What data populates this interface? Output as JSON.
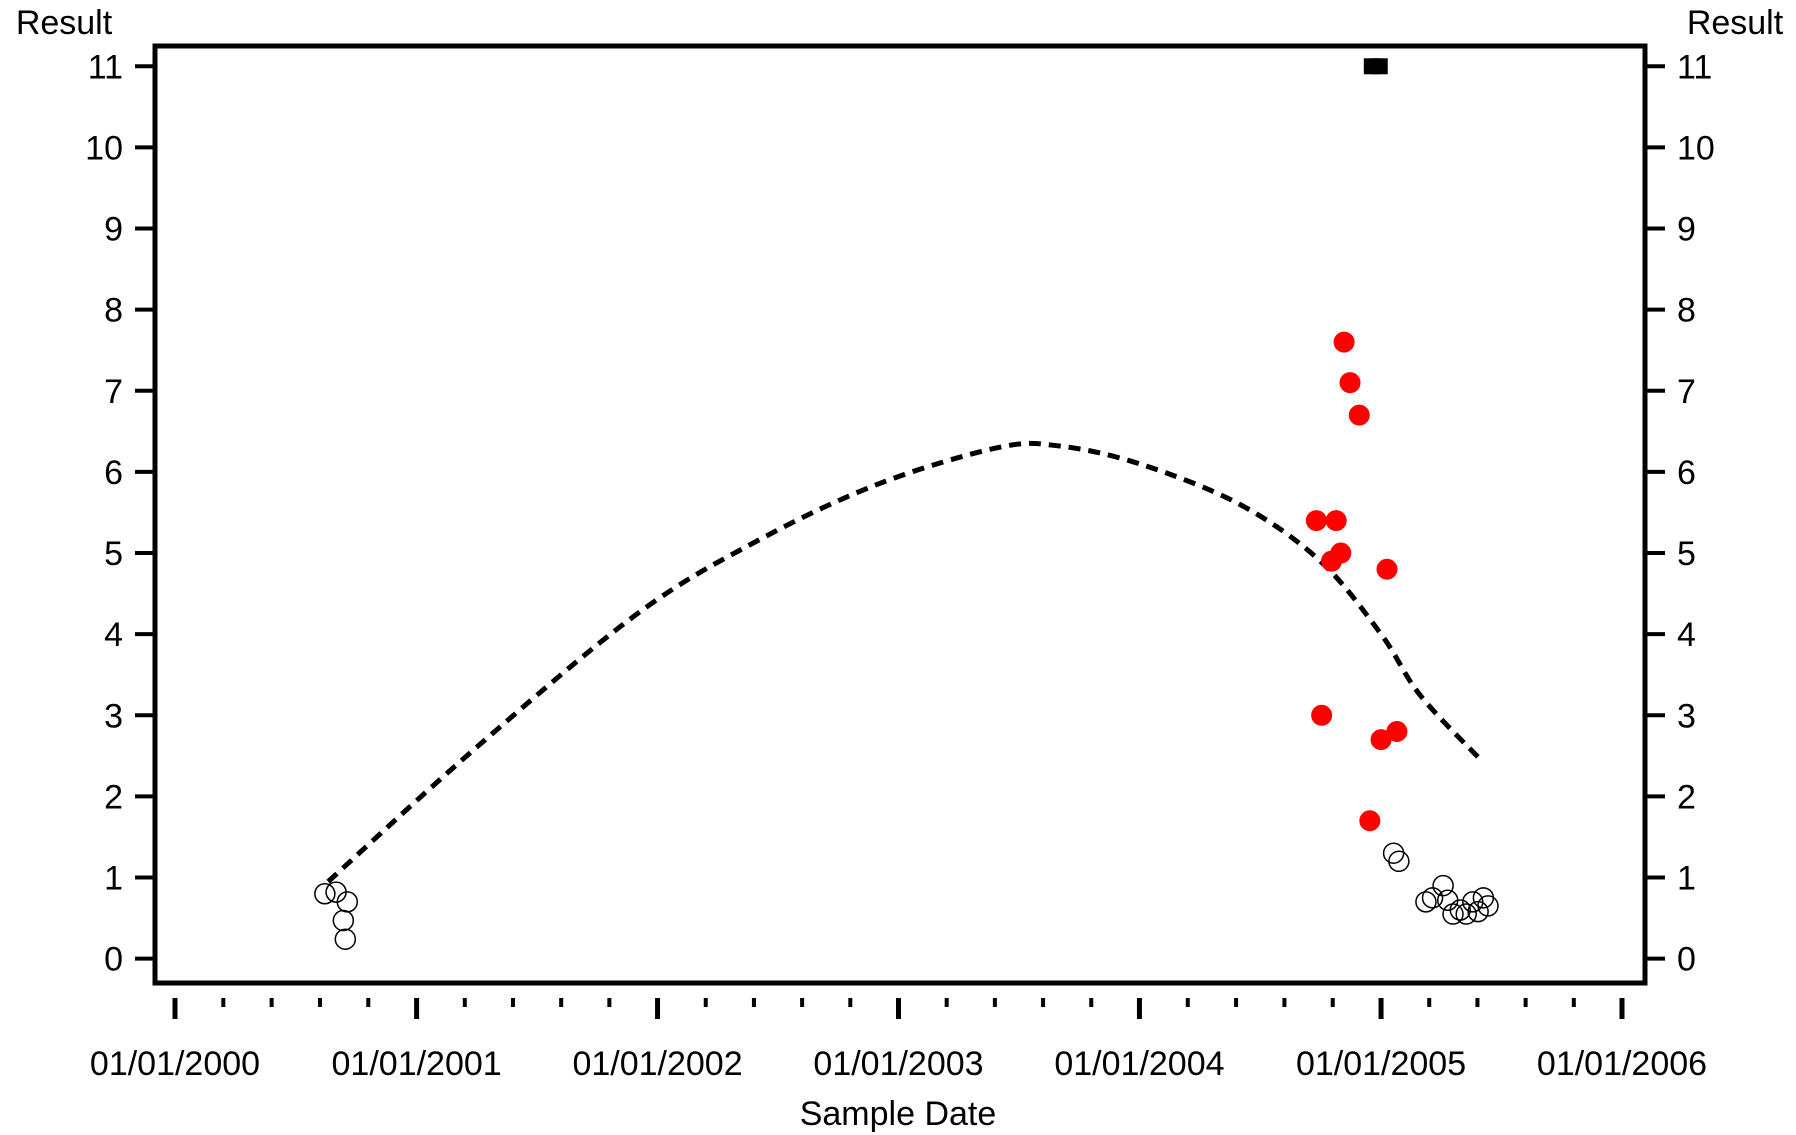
{
  "chart_data": {
    "type": "scatter",
    "title": "",
    "xlabel": "Sample Date",
    "ylabel_left": "Result",
    "ylabel_right": "Result",
    "x_axis": {
      "type": "date",
      "range": [
        "2000-01-01",
        "2006-01-01"
      ],
      "tick_labels": [
        "01/01/2000",
        "01/01/2001",
        "01/01/2002",
        "01/01/2003",
        "01/01/2004",
        "01/01/2005",
        "01/01/2006"
      ],
      "tick_dates": [
        "2000-01-01",
        "2001-01-01",
        "2002-01-01",
        "2003-01-01",
        "2004-01-01",
        "2005-01-01",
        "2006-01-01"
      ],
      "minor_ticks_per_interval": 4
    },
    "y_axis": {
      "range": [
        -0.3,
        11.25
      ],
      "ticks": [
        0,
        1,
        2,
        3,
        4,
        5,
        6,
        7,
        8,
        9,
        10,
        11
      ],
      "both_sides": true
    },
    "grid": false,
    "legend": "none",
    "colors": {
      "detected": "#ff0000",
      "not_detected_stroke": "#000000",
      "trend": "#000000",
      "outlier": "#000000"
    },
    "series": [
      {
        "marker": "open-circle",
        "points": [
          {
            "x": "2000-08-15",
            "y": 0.8
          },
          {
            "x": "2000-09-01",
            "y": 0.82
          },
          {
            "x": "2000-09-12",
            "y": 0.47
          },
          {
            "x": "2000-09-18",
            "y": 0.7
          },
          {
            "x": "2000-09-15",
            "y": 0.24
          },
          {
            "x": "2005-01-20",
            "y": 1.3
          },
          {
            "x": "2005-01-28",
            "y": 1.2
          },
          {
            "x": "2005-03-10",
            "y": 0.7
          },
          {
            "x": "2005-03-20",
            "y": 0.75
          },
          {
            "x": "2005-04-05",
            "y": 0.9
          },
          {
            "x": "2005-04-12",
            "y": 0.72
          },
          {
            "x": "2005-04-20",
            "y": 0.55
          },
          {
            "x": "2005-05-01",
            "y": 0.6
          },
          {
            "x": "2005-05-10",
            "y": 0.55
          },
          {
            "x": "2005-05-20",
            "y": 0.7
          },
          {
            "x": "2005-05-28",
            "y": 0.58
          },
          {
            "x": "2005-06-05",
            "y": 0.75
          },
          {
            "x": "2005-06-12",
            "y": 0.65
          }
        ]
      },
      {
        "marker": "filled-circle",
        "points": [
          {
            "x": "2004-09-25",
            "y": 5.4
          },
          {
            "x": "2004-10-03",
            "y": 3.0
          },
          {
            "x": "2004-10-18",
            "y": 4.9
          },
          {
            "x": "2004-10-25",
            "y": 5.4
          },
          {
            "x": "2004-11-01",
            "y": 5.0
          },
          {
            "x": "2004-11-06",
            "y": 7.6
          },
          {
            "x": "2004-11-15",
            "y": 7.1
          },
          {
            "x": "2004-11-29",
            "y": 6.7
          },
          {
            "x": "2004-12-15",
            "y": 1.7
          },
          {
            "x": "2005-01-01",
            "y": 2.7
          },
          {
            "x": "2005-01-10",
            "y": 4.8
          },
          {
            "x": "2005-01-25",
            "y": 2.8
          }
        ]
      },
      {
        "marker": "filled-square",
        "points": [
          {
            "x": "2004-12-18",
            "y": 11
          },
          {
            "x": "2004-12-30",
            "y": 11
          }
        ]
      },
      {
        "marker": "dashed-trend-line",
        "points": [
          {
            "x": "2000-08-20",
            "y": 0.95
          },
          {
            "x": "2001-04-01",
            "y": 2.6
          },
          {
            "x": "2001-12-01",
            "y": 4.25
          },
          {
            "x": "2002-06-01",
            "y": 5.15
          },
          {
            "x": "2002-12-01",
            "y": 5.85
          },
          {
            "x": "2003-06-01",
            "y": 6.3
          },
          {
            "x": "2003-09-01",
            "y": 6.32
          },
          {
            "x": "2004-01-01",
            "y": 6.1
          },
          {
            "x": "2004-06-01",
            "y": 5.6
          },
          {
            "x": "2004-10-01",
            "y": 4.9
          },
          {
            "x": "2005-01-01",
            "y": 4.0
          },
          {
            "x": "2005-03-01",
            "y": 3.25
          },
          {
            "x": "2005-06-01",
            "y": 2.45
          }
        ]
      }
    ]
  }
}
